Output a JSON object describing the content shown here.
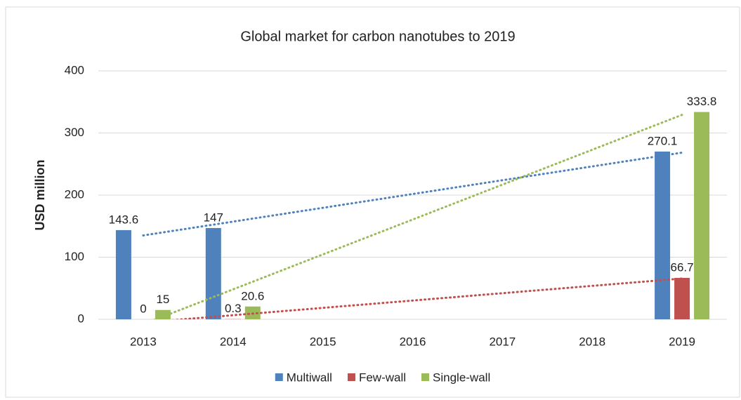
{
  "chart_data": {
    "type": "bar",
    "title": "Global market for carbon nanotubes to 2019",
    "y_label": "USD million",
    "categories": [
      "2013",
      "2014",
      "2015",
      "2016",
      "2017",
      "2018",
      "2019"
    ],
    "series": [
      {
        "name": "Multiwall",
        "color": "#4f81bd",
        "values": [
          143.6,
          147,
          null,
          null,
          null,
          null,
          270.1
        ]
      },
      {
        "name": "Few-wall",
        "color": "#c0504d",
        "values": [
          0,
          0.3,
          null,
          null,
          null,
          null,
          66.7
        ]
      },
      {
        "name": "Single-wall",
        "color": "#9bbb59",
        "values": [
          15,
          20.6,
          null,
          null,
          null,
          null,
          333.8
        ]
      }
    ],
    "ylim": [
      0,
      400
    ],
    "yticks": [
      0,
      100,
      200,
      300,
      400
    ],
    "grid": true,
    "trendline": "linear",
    "legend": "bottom"
  }
}
